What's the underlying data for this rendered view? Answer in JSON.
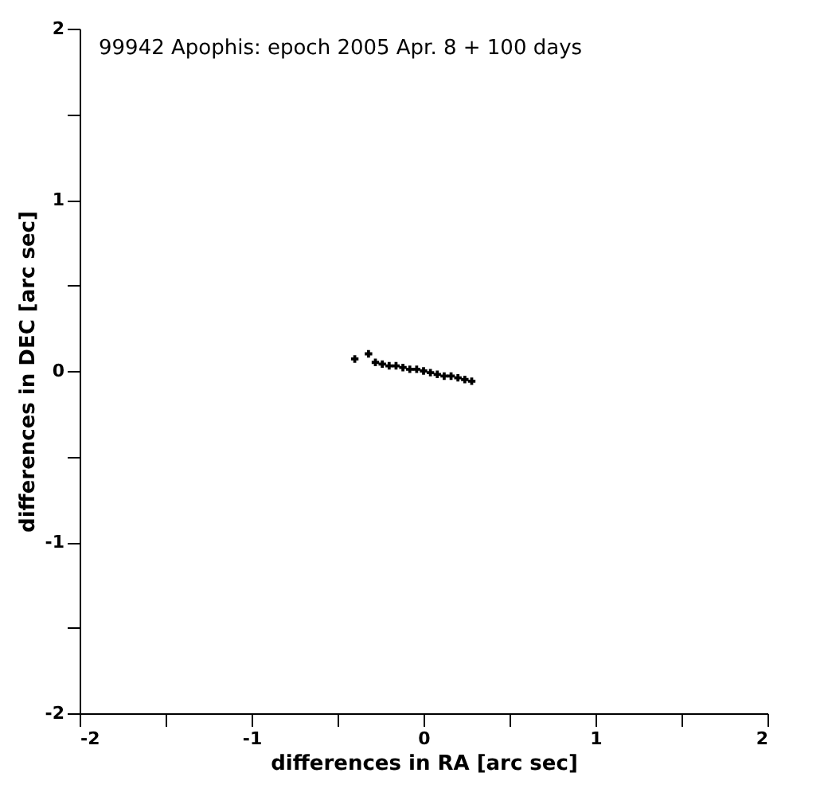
{
  "chart_data": {
    "type": "scatter",
    "title": "99942 Apophis: epoch 2005 Apr. 8 + 100 days",
    "xlabel": "differences in RA [arc sec]",
    "ylabel": "differences in DEC [arc sec]",
    "xlim": [
      -2,
      2
    ],
    "ylim": [
      -2,
      2
    ],
    "xticks": [
      -2,
      {
        "value": -1.5,
        "label": null
      },
      -1,
      {
        "value": -0.5,
        "label": null
      },
      0,
      {
        "value": 0.5,
        "label": null
      },
      1,
      {
        "value": 1.5,
        "label": null
      },
      2
    ],
    "yticks": [
      -2,
      {
        "value": -1.5,
        "label": null
      },
      -1,
      {
        "value": -0.5,
        "label": null
      },
      0,
      {
        "value": 0.5,
        "label": null
      },
      1,
      {
        "value": 1.5,
        "label": null
      },
      2
    ],
    "grid": false,
    "marker": "cross",
    "series": [
      {
        "color": "#000000",
        "x": [
          -0.4,
          -0.32,
          -0.28,
          -0.24,
          -0.2,
          -0.16,
          -0.12,
          -0.08,
          -0.04,
          0.0,
          0.04,
          0.08,
          0.12,
          0.16,
          0.2,
          0.24,
          0.28
        ],
        "values": [
          0.07,
          0.1,
          0.05,
          0.04,
          0.03,
          0.03,
          0.02,
          0.01,
          0.01,
          0.0,
          -0.01,
          -0.02,
          -0.03,
          -0.03,
          -0.04,
          -0.05,
          -0.06
        ]
      }
    ]
  }
}
